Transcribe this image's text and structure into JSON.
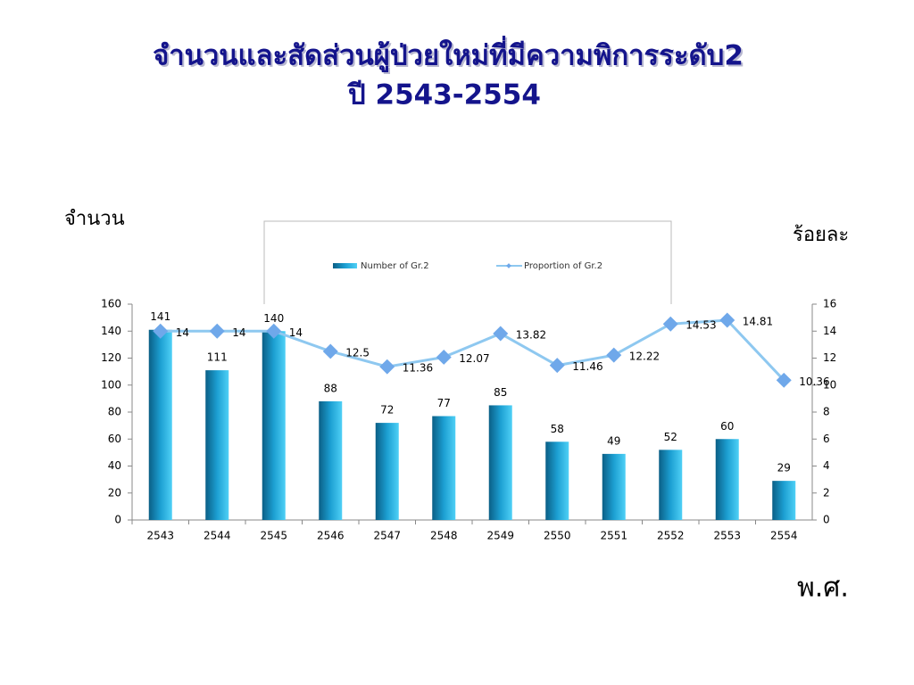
{
  "chart_data": {
    "type": "combo",
    "title": "จำนวนและสัดส่วนผู้ป่วยใหม่ที่มีความพิการระดับ2",
    "subtitle": "ปี 2543-2554",
    "y_label": "จำนวน",
    "y2_label": "ร้อยละ",
    "x_label": "พ.ศ.",
    "categories": [
      "2543",
      "2544",
      "2545",
      "2546",
      "2547",
      "2548",
      "2549",
      "2550",
      "2551",
      "2552",
      "2553",
      "2554"
    ],
    "series": [
      {
        "name": "Number of Gr.2",
        "type": "bar",
        "color": "#1aa3d6",
        "values": [
          141,
          111,
          140,
          88,
          72,
          77,
          85,
          58,
          49,
          52,
          60,
          29
        ]
      },
      {
        "name": "Proportion of Gr.2",
        "type": "line",
        "axis": "y2",
        "color": "#8ec8f0",
        "values": [
          14,
          14,
          14,
          12.5,
          11.36,
          12.07,
          13.82,
          11.46,
          12.22,
          14.53,
          14.81,
          10.36
        ]
      }
    ],
    "ylim": [
      0,
      160
    ],
    "yticks": [
      0,
      20,
      40,
      60,
      80,
      100,
      120,
      140,
      160
    ],
    "y2lim": [
      0,
      16
    ],
    "y2ticks": [
      0,
      2,
      4,
      6,
      8,
      10,
      12,
      14,
      16
    ]
  }
}
